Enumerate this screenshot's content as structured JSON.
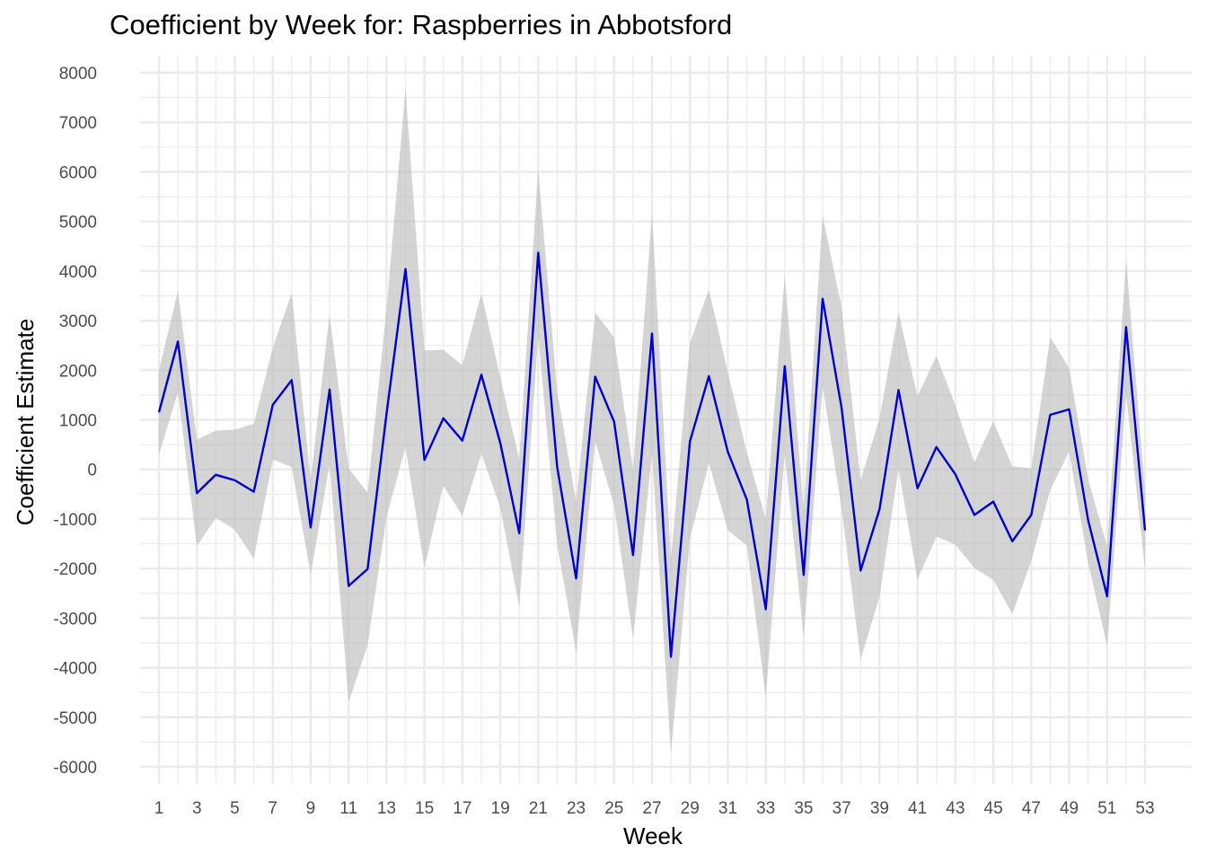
{
  "chart_data": {
    "type": "line",
    "title": "Coefficient by Week for: Raspberries in Abbotsford",
    "xlabel": "Week",
    "ylabel": "Coefficient Estimate",
    "xlim": [
      1,
      53
    ],
    "ylim": [
      -6000,
      8000
    ],
    "x_ticks": [
      1,
      3,
      5,
      7,
      9,
      11,
      13,
      15,
      17,
      19,
      21,
      23,
      25,
      27,
      29,
      31,
      33,
      35,
      37,
      39,
      41,
      43,
      45,
      47,
      49,
      51,
      53
    ],
    "y_ticks": [
      -6000,
      -5000,
      -4000,
      -3000,
      -2000,
      -1000,
      0,
      1000,
      2000,
      3000,
      4000,
      5000,
      6000,
      7000,
      8000
    ],
    "grid": true,
    "colors": {
      "line": "#0000cd",
      "band": "#bdbdbd",
      "grid": "#ebebeb"
    },
    "x": [
      1,
      2,
      3,
      4,
      5,
      6,
      7,
      8,
      9,
      10,
      11,
      12,
      13,
      14,
      15,
      16,
      17,
      18,
      19,
      20,
      21,
      22,
      23,
      24,
      25,
      26,
      27,
      28,
      29,
      30,
      31,
      32,
      33,
      34,
      35,
      36,
      37,
      38,
      39,
      40,
      41,
      42,
      43,
      44,
      45,
      46,
      47,
      48,
      49,
      50,
      51,
      52,
      53
    ],
    "series": [
      {
        "values": [
          1150,
          2580,
          -480,
          -110,
          -220,
          -450,
          1300,
          1800,
          -1170,
          1610,
          -2350,
          -2010,
          1120,
          4040,
          190,
          1030,
          580,
          1910,
          530,
          -1290,
          4370,
          50,
          -2200,
          1870,
          960,
          -1730,
          2740,
          -3780,
          560,
          1880,
          350,
          -610,
          -2820,
          2080,
          -2130,
          3440,
          1230,
          -2040,
          -800,
          1600,
          -380,
          450,
          -100,
          -920,
          -650,
          -1450,
          -920,
          1100,
          1210,
          -1030,
          -2560,
          2870,
          -1230
        ]
      }
    ],
    "band_lower": [
      300,
      1550,
      -1550,
      -980,
      -1220,
      -1800,
      200,
      50,
      -2120,
      100,
      -4700,
      -3550,
      -960,
      450,
      -1980,
      -330,
      -930,
      310,
      -770,
      -2770,
      2700,
      -1520,
      -3690,
      570,
      -730,
      -3410,
      320,
      -5740,
      -1400,
      130,
      -1230,
      -1540,
      -4600,
      320,
      -3390,
      1680,
      -810,
      -3840,
      -2560,
      10,
      -2220,
      -1360,
      -1520,
      -1990,
      -2230,
      -2920,
      -1850,
      -420,
      360,
      -1900,
      -3560,
      1510,
      -2010
    ],
    "band_upper": [
      2000,
      3600,
      600,
      780,
      800,
      920,
      2450,
      3560,
      -210,
      3130,
      20,
      -470,
      3240,
      7680,
      2400,
      2410,
      2100,
      3550,
      1850,
      200,
      6050,
      1580,
      -660,
      3160,
      2660,
      0,
      5160,
      -1810,
      2540,
      3630,
      1950,
      340,
      -1000,
      3920,
      -830,
      5120,
      3260,
      -220,
      1030,
      3170,
      1470,
      2290,
      1290,
      140,
      970,
      60,
      20,
      2670,
      2040,
      -200,
      -1560,
      4240,
      -450
    ]
  }
}
